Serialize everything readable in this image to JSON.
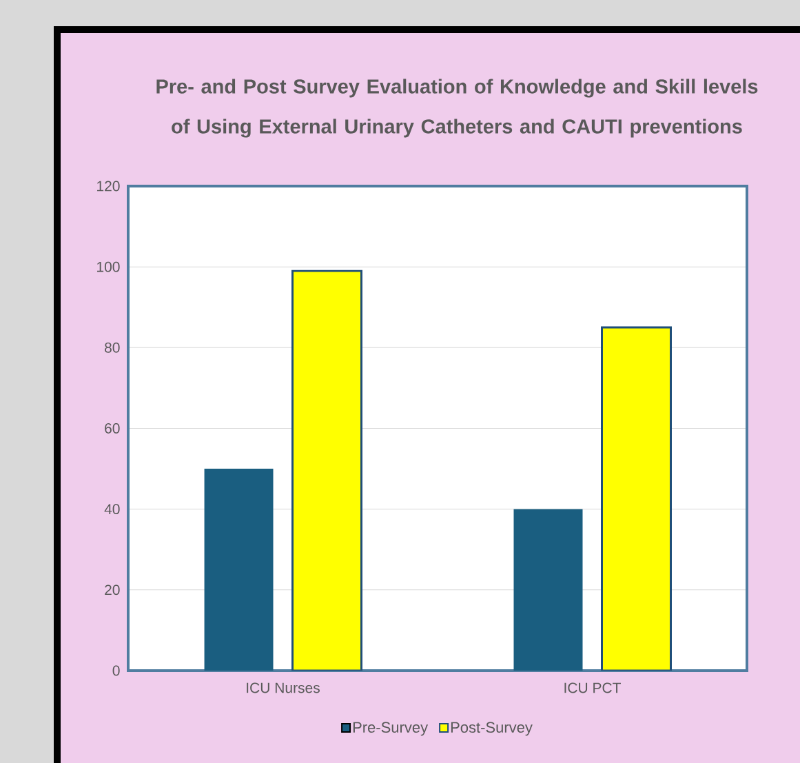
{
  "chart_data": {
    "type": "bar",
    "title": "Pre- and Post Survey Evaluation of Knowledge and Skill levels of Using External Urinary Catheters and CAUTI preventions",
    "categories": [
      "ICU Nurses",
      "ICU PCT"
    ],
    "series": [
      {
        "name": "Pre-Survey",
        "color": "#1a5e80",
        "values": [
          50,
          40
        ]
      },
      {
        "name": "Post-Survey",
        "color": "#ffff00",
        "values": [
          99,
          85
        ]
      }
    ],
    "ylim": [
      0,
      120
    ],
    "yticks": [
      0,
      20,
      40,
      60,
      80,
      100,
      120
    ],
    "grid": "y",
    "legend": "bottom"
  }
}
